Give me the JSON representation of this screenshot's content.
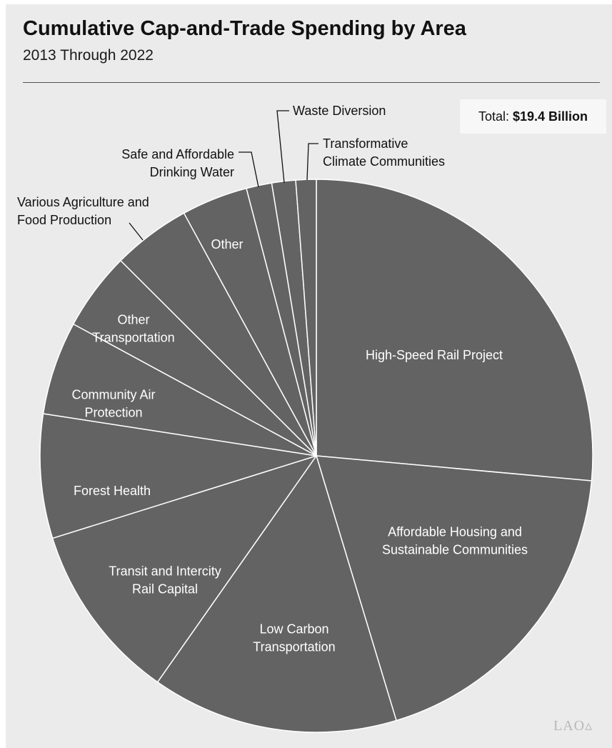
{
  "header": {
    "title": "Cumulative Cap-and-Trade Spending by Area",
    "subtitle": "2013 Through 2022"
  },
  "total": {
    "label": "Total:",
    "value": "$19.4 Billion"
  },
  "logo": {
    "text": "LAO"
  },
  "colors": {
    "background": "#ebebeb",
    "slice_fill": "#636363",
    "slice_stroke": "#ffffff",
    "text": "#111111"
  },
  "chart_data": {
    "type": "pie",
    "units": "percent of total",
    "title": "Cumulative Cap-and-Trade Spending by Area",
    "subtitle": "2013 Through 2022",
    "total": "$19.4 Billion",
    "slices": [
      {
        "label": "High-Speed Rail Project",
        "value": 26.6
      },
      {
        "label": "Affordable Housing and Sustainable Communities",
        "value": 19.0
      },
      {
        "label": "Low Carbon Transportation",
        "value": 14.5
      },
      {
        "label": "Transit and Intercity Rail Capital",
        "value": 10.5
      },
      {
        "label": "Forest Health",
        "value": 7.3
      },
      {
        "label": "Community Air Protection",
        "value": 5.5
      },
      {
        "label": "Other Transportation",
        "value": 4.6
      },
      {
        "label": "Various Agriculture and Food Production",
        "value": 4.6
      },
      {
        "label": "Other",
        "value": 3.9
      },
      {
        "label": "Safe and Affordable Drinking Water",
        "value": 1.5
      },
      {
        "label": "Waste Diversion",
        "value": 1.4
      },
      {
        "label": "Transformative Climate Communities",
        "value": 1.2
      }
    ],
    "start_angle": "12 o'clock",
    "direction": "clockwise",
    "legend": "none"
  }
}
